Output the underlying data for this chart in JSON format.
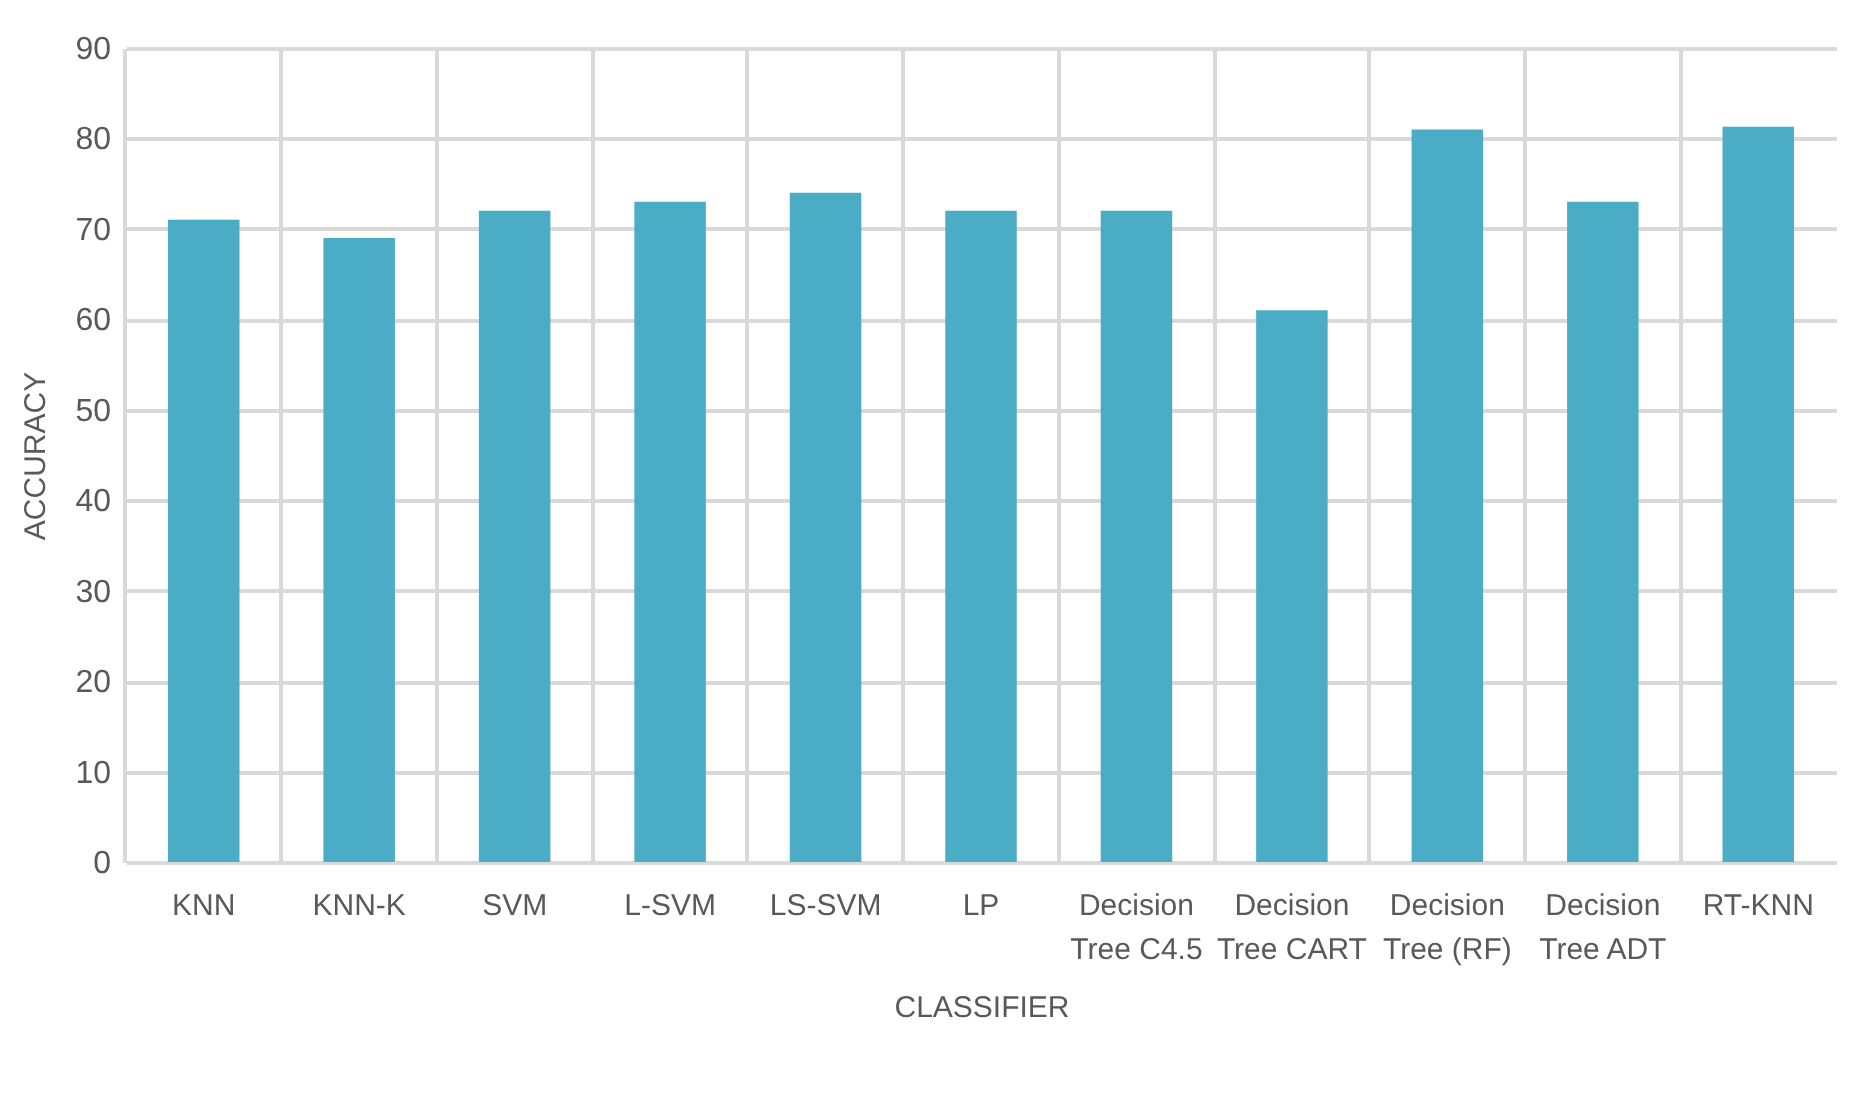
{
  "chart_data": {
    "type": "bar",
    "xlabel": "CLASSIFIER",
    "ylabel": "ACCURACY",
    "categories": [
      "KNN",
      "KNN-K",
      "SVM",
      "L-SVM",
      "LS-SVM",
      "LP",
      "Decision Tree C4.5",
      "Decision Tree CART",
      "Decision Tree (RF)",
      "Decision Tree ADT",
      "RT-KNN"
    ],
    "values": [
      71,
      69,
      72,
      73,
      74,
      72,
      72,
      61,
      81,
      73,
      81.3
    ],
    "color": "#4bacc6",
    "ylim": [
      0,
      90
    ],
    "yticks": [
      0,
      10,
      20,
      30,
      40,
      50,
      60,
      70,
      80,
      90
    ],
    "grid": true
  }
}
